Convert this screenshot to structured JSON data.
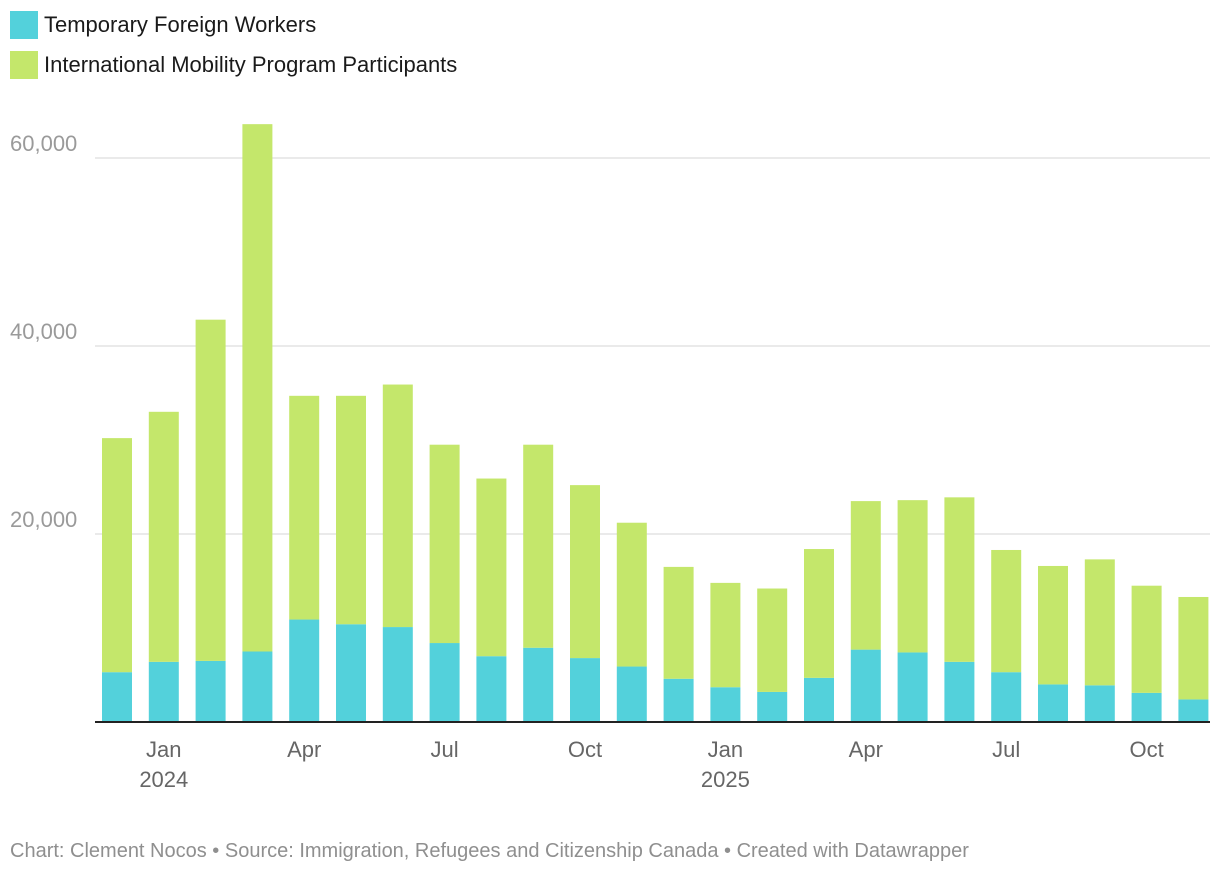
{
  "legend": {
    "items": [
      {
        "label": "Temporary Foreign Workers",
        "color": "#53d1db"
      },
      {
        "label": "International Mobility Program Participants",
        "color": "#c4e76b"
      }
    ]
  },
  "chart_data": {
    "type": "bar",
    "stacked": true,
    "categories": [
      "2023-12",
      "2024-01",
      "2024-02",
      "2024-03",
      "2024-04",
      "2024-05",
      "2024-06",
      "2024-07",
      "2024-08",
      "2024-09",
      "2024-10",
      "2024-11",
      "2024-12",
      "2025-01",
      "2025-02",
      "2025-03",
      "2025-04",
      "2025-05",
      "2025-06",
      "2025-07",
      "2025-08",
      "2025-09",
      "2025-10",
      "2025-11"
    ],
    "series": [
      {
        "name": "Temporary Foreign Workers",
        "color": "#53d1db",
        "values": [
          5300,
          6400,
          6500,
          7500,
          10900,
          10400,
          10100,
          8400,
          7000,
          7900,
          6800,
          5900,
          4600,
          3700,
          3200,
          4700,
          7700,
          7400,
          6400,
          5300,
          4000,
          3900,
          3100,
          2400
        ]
      },
      {
        "name": "International Mobility Program Participants",
        "color": "#c4e76b",
        "values": [
          24900,
          26600,
          36300,
          56100,
          23800,
          24300,
          25800,
          21100,
          18900,
          21600,
          18400,
          15300,
          11900,
          11100,
          11000,
          13700,
          15800,
          16200,
          17500,
          13000,
          12600,
          13400,
          11400,
          10900
        ]
      }
    ],
    "ylim": [
      0,
      64000
    ],
    "yticks": [
      {
        "value": 20000,
        "label": "20,000"
      },
      {
        "value": 40000,
        "label": "40,000"
      },
      {
        "value": 60000,
        "label": "60,000"
      }
    ],
    "xticks": [
      {
        "index": 1,
        "label": "Jan",
        "sublabel": "2024"
      },
      {
        "index": 4,
        "label": "Apr",
        "sublabel": ""
      },
      {
        "index": 7,
        "label": "Jul",
        "sublabel": ""
      },
      {
        "index": 10,
        "label": "Oct",
        "sublabel": ""
      },
      {
        "index": 13,
        "label": "Jan",
        "sublabel": "2025"
      },
      {
        "index": 16,
        "label": "Apr",
        "sublabel": ""
      },
      {
        "index": 19,
        "label": "Jul",
        "sublabel": ""
      },
      {
        "index": 22,
        "label": "Oct",
        "sublabel": ""
      }
    ],
    "gridlines": true
  },
  "footer": {
    "credit": "Chart: Clement Nocos • Source: Immigration, Refugees and Citizenship Canada • Created with Datawrapper"
  }
}
